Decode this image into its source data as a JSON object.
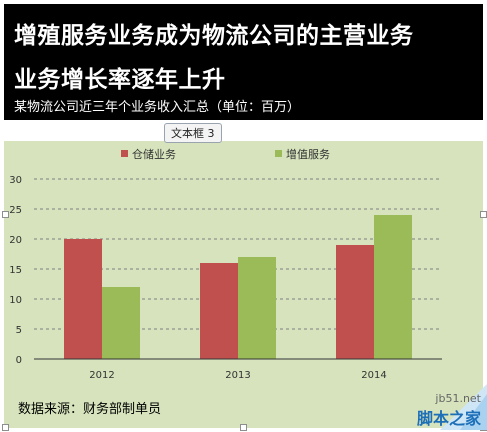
{
  "header": {
    "title_line1": "增殖服务业务成为物流公司的主营业务",
    "title_line2": "业务增长率逐年上升",
    "subtitle": "某物流公司近三年个业务收入汇总（单位：百万）"
  },
  "textbox_tag": "文本框 3",
  "footer": {
    "source": "数据来源：财务部制单员"
  },
  "watermark": {
    "url": "jb51.net",
    "name": "脚本之家"
  },
  "colors": {
    "storage": "#c0504d",
    "value_added": "#9bbb59",
    "plot_bg": "#d6e3bc",
    "header_bg": "#000000"
  },
  "chart_data": {
    "type": "bar",
    "categories": [
      "2012",
      "2013",
      "2014"
    ],
    "series": [
      {
        "name": "仓储业务",
        "values": [
          20,
          16,
          19
        ]
      },
      {
        "name": "增值服务",
        "values": [
          12,
          17,
          24
        ]
      }
    ],
    "ylim": [
      0,
      30
    ],
    "yticks": [
      0,
      5,
      10,
      15,
      20,
      25,
      30
    ],
    "grid": true,
    "legend_position": "top"
  }
}
